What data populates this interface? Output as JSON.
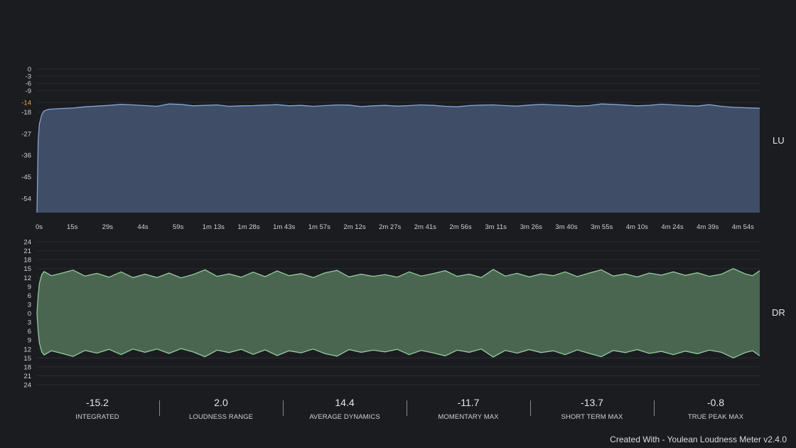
{
  "chart_data": [
    {
      "type": "area",
      "unit_label": "LU",
      "y_ticks": [
        0,
        -3,
        -6,
        -9,
        -14,
        -18,
        -27,
        -36,
        -45,
        -54
      ],
      "highlight_tick": -14,
      "ylim": [
        -60,
        0
      ],
      "xlim": [
        0,
        301
      ],
      "x_tick_labels": [
        "0s",
        "15s",
        "29s",
        "44s",
        "59s",
        "1m 13s",
        "1m 28s",
        "1m 43s",
        "1m 57s",
        "2m 12s",
        "2m 27s",
        "2m 41s",
        "2m 56s",
        "3m 11s",
        "3m 26s",
        "3m 40s",
        "3m 55s",
        "4m 10s",
        "4m 24s",
        "4m 39s",
        "4m 54s"
      ],
      "x_tick_values": [
        0,
        14.7,
        29.4,
        44.1,
        58.8,
        73.5,
        88.2,
        102.9,
        117.6,
        132.3,
        147,
        161.7,
        176.4,
        191.1,
        205.8,
        220.5,
        235.2,
        249.9,
        264.6,
        279.3,
        294
      ],
      "grid": true,
      "colors": {
        "fill": "#3f4d66",
        "line": "#86a6d8",
        "highlight_tick": "#e3a43a"
      },
      "points": [
        [
          0,
          -60
        ],
        [
          0.5,
          -30
        ],
        [
          1,
          -23
        ],
        [
          2,
          -19
        ],
        [
          3,
          -17.5
        ],
        [
          5,
          -16.8
        ],
        [
          10,
          -16.5
        ],
        [
          15,
          -16.3
        ],
        [
          20,
          -15.8
        ],
        [
          25,
          -15.5
        ],
        [
          30,
          -15.2
        ],
        [
          35,
          -14.8
        ],
        [
          40,
          -15.0
        ],
        [
          45,
          -15.3
        ],
        [
          50,
          -15.6
        ],
        [
          55,
          -14.6
        ],
        [
          60,
          -14.8
        ],
        [
          65,
          -15.4
        ],
        [
          70,
          -15.2
        ],
        [
          75,
          -15.0
        ],
        [
          80,
          -15.6
        ],
        [
          85,
          -15.4
        ],
        [
          90,
          -15.3
        ],
        [
          95,
          -15.1
        ],
        [
          100,
          -14.9
        ],
        [
          105,
          -15.4
        ],
        [
          110,
          -15.2
        ],
        [
          115,
          -15.6
        ],
        [
          120,
          -15.3
        ],
        [
          125,
          -15.0
        ],
        [
          130,
          -15.1
        ],
        [
          135,
          -15.7
        ],
        [
          140,
          -15.4
        ],
        [
          145,
          -15.2
        ],
        [
          150,
          -15.5
        ],
        [
          155,
          -15.3
        ],
        [
          160,
          -15.0
        ],
        [
          165,
          -15.2
        ],
        [
          170,
          -15.6
        ],
        [
          175,
          -15.8
        ],
        [
          180,
          -15.3
        ],
        [
          185,
          -15.1
        ],
        [
          190,
          -15.0
        ],
        [
          195,
          -15.3
        ],
        [
          200,
          -15.5
        ],
        [
          205,
          -15.1
        ],
        [
          210,
          -14.8
        ],
        [
          215,
          -15.0
        ],
        [
          220,
          -15.2
        ],
        [
          225,
          -15.5
        ],
        [
          230,
          -15.3
        ],
        [
          235,
          -14.6
        ],
        [
          240,
          -14.8
        ],
        [
          245,
          -15.1
        ],
        [
          250,
          -15.4
        ],
        [
          255,
          -15.2
        ],
        [
          260,
          -14.7
        ],
        [
          265,
          -15.0
        ],
        [
          270,
          -15.3
        ],
        [
          275,
          -15.5
        ],
        [
          280,
          -14.9
        ],
        [
          285,
          -15.6
        ],
        [
          290,
          -16.0
        ],
        [
          295,
          -16.2
        ],
        [
          301,
          -16.4
        ]
      ]
    },
    {
      "type": "area",
      "unit_label": "DR",
      "y_ticks": [
        24,
        21,
        18,
        15,
        12,
        9,
        6,
        3,
        0,
        3,
        6,
        9,
        12,
        15,
        18,
        21,
        24
      ],
      "ylim": [
        -24,
        24
      ],
      "xlim": [
        0,
        301
      ],
      "mirrored": true,
      "grid": true,
      "colors": {
        "fill": "#4a6650",
        "line": "#93cc9f"
      },
      "points": [
        [
          0,
          0
        ],
        [
          0.5,
          6
        ],
        [
          1,
          10
        ],
        [
          2,
          13
        ],
        [
          3,
          14.0
        ],
        [
          6,
          12.6
        ],
        [
          10,
          13.4
        ],
        [
          15,
          14.5
        ],
        [
          20,
          12.5
        ],
        [
          25,
          13.4
        ],
        [
          30,
          12.1
        ],
        [
          35,
          13.9
        ],
        [
          40,
          12.0
        ],
        [
          45,
          13.1
        ],
        [
          50,
          12.0
        ],
        [
          55,
          13.5
        ],
        [
          60,
          11.9
        ],
        [
          65,
          13.0
        ],
        [
          70,
          14.6
        ],
        [
          75,
          12.4
        ],
        [
          80,
          13.2
        ],
        [
          85,
          12.1
        ],
        [
          90,
          13.8
        ],
        [
          95,
          12.3
        ],
        [
          100,
          14.2
        ],
        [
          105,
          12.6
        ],
        [
          110,
          13.3
        ],
        [
          115,
          12.0
        ],
        [
          120,
          13.6
        ],
        [
          125,
          14.4
        ],
        [
          130,
          12.2
        ],
        [
          135,
          13.1
        ],
        [
          140,
          12.4
        ],
        [
          145,
          13.0
        ],
        [
          150,
          12.1
        ],
        [
          155,
          13.9
        ],
        [
          160,
          12.5
        ],
        [
          165,
          13.3
        ],
        [
          170,
          14.3
        ],
        [
          175,
          12.4
        ],
        [
          180,
          13.1
        ],
        [
          185,
          12.0
        ],
        [
          190,
          14.7
        ],
        [
          195,
          12.5
        ],
        [
          200,
          13.4
        ],
        [
          205,
          12.2
        ],
        [
          210,
          13.2
        ],
        [
          215,
          12.6
        ],
        [
          220,
          13.9
        ],
        [
          225,
          12.3
        ],
        [
          230,
          13.5
        ],
        [
          235,
          14.6
        ],
        [
          240,
          12.5
        ],
        [
          245,
          13.2
        ],
        [
          250,
          12.2
        ],
        [
          255,
          13.5
        ],
        [
          260,
          12.8
        ],
        [
          265,
          13.9
        ],
        [
          270,
          12.7
        ],
        [
          275,
          13.6
        ],
        [
          280,
          12.4
        ],
        [
          285,
          13.1
        ],
        [
          290,
          15.0
        ],
        [
          295,
          13.2
        ],
        [
          298,
          12.6
        ],
        [
          301,
          14.3
        ]
      ]
    }
  ],
  "stats": [
    {
      "value": "-15.2",
      "label": "INTEGRATED"
    },
    {
      "value": "2.0",
      "label": "LOUDNESS RANGE"
    },
    {
      "value": "14.4",
      "label": "AVERAGE DYNAMICS"
    },
    {
      "value": "-11.7",
      "label": "MOMENTARY MAX"
    },
    {
      "value": "-13.7",
      "label": "SHORT TERM MAX"
    },
    {
      "value": "-0.8",
      "label": "TRUE PEAK MAX"
    }
  ],
  "footer": "Created With - Youlean Loudness Meter v2.4.0"
}
